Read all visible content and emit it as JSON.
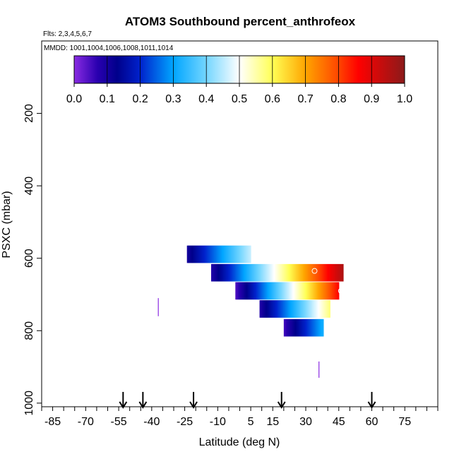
{
  "chart_data": {
    "type": "heatmap",
    "title": "ATOM3 Southbound percent_anthrofeox",
    "subtitle_flights": "Flts: 2,3,4,5,6,7",
    "subtitle_dates": "MMDD: 1001,1004,1006,1008,1011,1014",
    "xlabel": "Latitude (deg N)",
    "ylabel": "PSXC (mbar)",
    "xlim": [
      -90,
      90
    ],
    "ylim": [
      1010,
      0
    ],
    "x_ticks": [
      -85,
      -70,
      -55,
      -40,
      -25,
      -10,
      5,
      15,
      30,
      45,
      60,
      75
    ],
    "x_minor_step": 5,
    "y_ticks": [
      200,
      400,
      600,
      800,
      1000
    ],
    "colorbar": {
      "ticks": [
        "0.0",
        "0.1",
        "0.2",
        "0.3",
        "0.4",
        "0.5",
        "0.6",
        "0.7",
        "0.8",
        "0.9",
        "1.0"
      ],
      "stops": [
        {
          "v": 0.0,
          "c": "#8a2be2"
        },
        {
          "v": 0.07,
          "c": "#2a00b0"
        },
        {
          "v": 0.13,
          "c": "#00008b"
        },
        {
          "v": 0.2,
          "c": "#0022cc"
        },
        {
          "v": 0.3,
          "c": "#00a5ff"
        },
        {
          "v": 0.4,
          "c": "#74d6ff"
        },
        {
          "v": 0.5,
          "c": "#ffffff"
        },
        {
          "v": 0.6,
          "c": "#ffff55"
        },
        {
          "v": 0.7,
          "c": "#ffa500"
        },
        {
          "v": 0.8,
          "c": "#ff4500"
        },
        {
          "v": 0.86,
          "c": "#ff0000"
        },
        {
          "v": 1.0,
          "c": "#8b1a1a"
        }
      ]
    },
    "bands": [
      {
        "p_top": 565,
        "p_bot": 613,
        "lat_start": -24,
        "lat_end": 5,
        "val_start": 0.1,
        "val_end": 0.46
      },
      {
        "p_top": 616,
        "p_bot": 664,
        "lat_start": -13,
        "lat_end": 47,
        "val_start": 0.08,
        "val_end": 0.96
      },
      {
        "p_top": 666,
        "p_bot": 714,
        "lat_start": -2,
        "lat_end": 45,
        "val_start": 0.04,
        "val_end": 0.86
      },
      {
        "p_top": 716,
        "p_bot": 764,
        "lat_start": 9,
        "lat_end": 41,
        "val_start": 0.08,
        "val_end": 0.58
      },
      {
        "p_top": 768,
        "p_bot": 816,
        "lat_start": 20,
        "lat_end": 38,
        "val_start": 0.05,
        "val_end": 0.32
      }
    ],
    "marker_lines": [
      {
        "lat": -37,
        "p_top": 710,
        "p_bot": 760,
        "value": 0.0
      },
      {
        "lat": 36,
        "p_top": 885,
        "p_bot": 930,
        "value": 0.0
      }
    ],
    "open_circles": [
      {
        "lat": 34,
        "pressure": 635
      },
      {
        "lat": 46,
        "pressure": 690
      }
    ],
    "arrows_lat": [
      -53,
      -44,
      -21,
      19,
      60
    ]
  }
}
